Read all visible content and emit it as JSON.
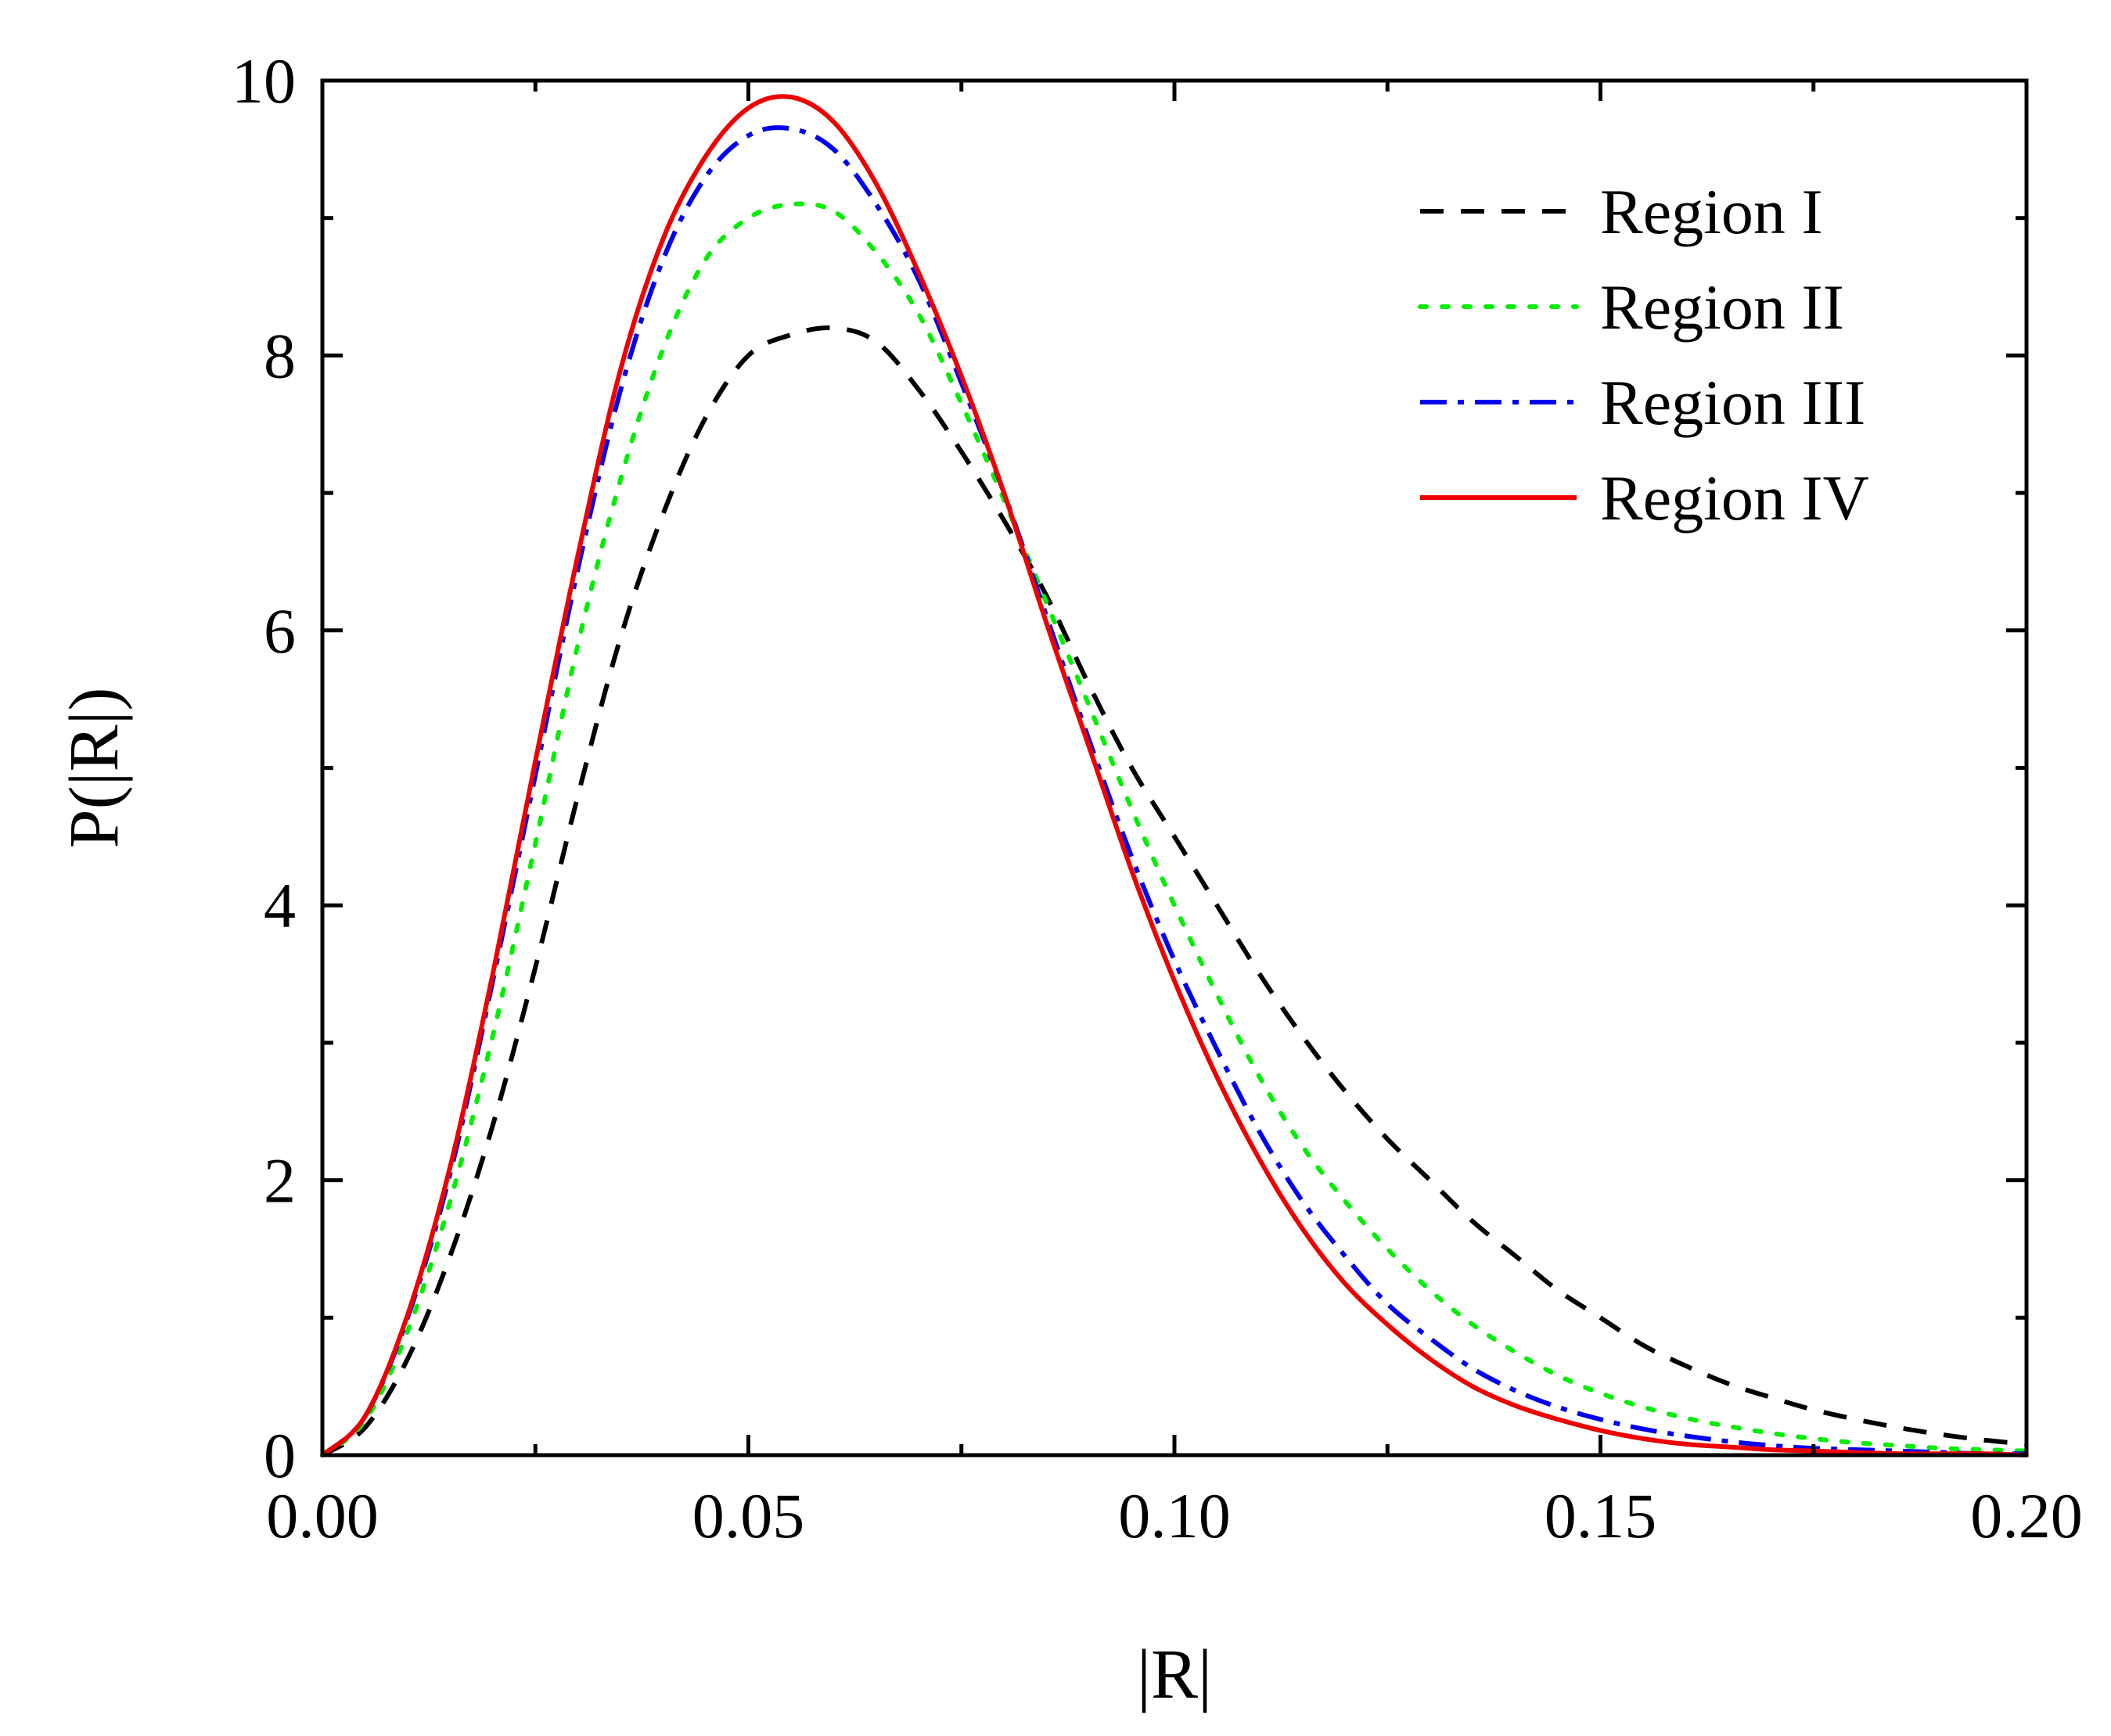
{
  "chart_data": {
    "type": "line",
    "title": "",
    "xlabel": "|R|",
    "ylabel": "P(|R|)",
    "xlim": [
      0,
      0.2
    ],
    "ylim": [
      0,
      10
    ],
    "x_ticks": [
      "0.00",
      "0.05",
      "0.10",
      "0.15",
      "0.20"
    ],
    "y_ticks": [
      "0",
      "2",
      "4",
      "6",
      "8",
      "10"
    ],
    "grid": false,
    "legend_position": "top-right",
    "x": [
      0,
      0.005,
      0.01,
      0.015,
      0.02,
      0.025,
      0.03,
      0.035,
      0.04,
      0.045,
      0.05,
      0.055,
      0.06,
      0.065,
      0.07,
      0.075,
      0.08,
      0.085,
      0.09,
      0.095,
      0.1,
      0.105,
      0.11,
      0.115,
      0.12,
      0.125,
      0.13,
      0.135,
      0.14,
      0.145,
      0.15,
      0.155,
      0.16,
      0.165,
      0.17,
      0.175,
      0.18,
      0.185,
      0.19,
      0.195,
      0.2
    ],
    "series": [
      {
        "name": "Region I",
        "color": "#000000",
        "dash": "dashed",
        "values": [
          0,
          0.2,
          0.7,
          1.45,
          2.4,
          3.55,
          4.8,
          5.95,
          6.85,
          7.55,
          8.0,
          8.15,
          8.2,
          8.1,
          7.75,
          7.3,
          6.8,
          6.25,
          5.6,
          5.0,
          4.5,
          4.0,
          3.5,
          3.05,
          2.65,
          2.3,
          2.0,
          1.7,
          1.45,
          1.2,
          1.0,
          0.8,
          0.65,
          0.52,
          0.42,
          0.33,
          0.26,
          0.2,
          0.15,
          0.11,
          0.08
        ]
      },
      {
        "name": "Region II",
        "color": "#00ee00",
        "dash": "dotted",
        "values": [
          0,
          0.25,
          0.9,
          1.85,
          3.05,
          4.45,
          5.9,
          7.1,
          8.05,
          8.7,
          9.0,
          9.1,
          9.05,
          8.75,
          8.3,
          7.65,
          6.95,
          6.2,
          5.45,
          4.7,
          4.0,
          3.35,
          2.75,
          2.25,
          1.85,
          1.5,
          1.2,
          0.95,
          0.75,
          0.58,
          0.45,
          0.35,
          0.27,
          0.21,
          0.16,
          0.12,
          0.09,
          0.07,
          0.05,
          0.04,
          0.03
        ]
      },
      {
        "name": "Region III",
        "color": "#0000ee",
        "dash": "dashdot",
        "values": [
          0,
          0.28,
          1.0,
          2.05,
          3.45,
          4.95,
          6.45,
          7.75,
          8.7,
          9.3,
          9.6,
          9.65,
          9.5,
          9.1,
          8.55,
          7.8,
          7.0,
          6.1,
          5.2,
          4.35,
          3.6,
          2.95,
          2.35,
          1.85,
          1.45,
          1.1,
          0.85,
          0.63,
          0.47,
          0.35,
          0.26,
          0.19,
          0.14,
          0.1,
          0.07,
          0.05,
          0.04,
          0.03,
          0.02,
          0.01,
          0.01
        ]
      },
      {
        "name": "Region IV",
        "color": "#ee0000",
        "dash": "solid",
        "values": [
          0,
          0.28,
          1.02,
          2.1,
          3.5,
          5.05,
          6.55,
          7.9,
          8.85,
          9.45,
          9.8,
          9.88,
          9.7,
          9.25,
          8.6,
          7.85,
          7.0,
          6.05,
          5.15,
          4.25,
          3.45,
          2.75,
          2.15,
          1.65,
          1.25,
          0.95,
          0.7,
          0.5,
          0.36,
          0.26,
          0.18,
          0.12,
          0.08,
          0.06,
          0.04,
          0.03,
          0.02,
          0.01,
          0.01,
          0.01,
          0.0
        ]
      }
    ]
  }
}
